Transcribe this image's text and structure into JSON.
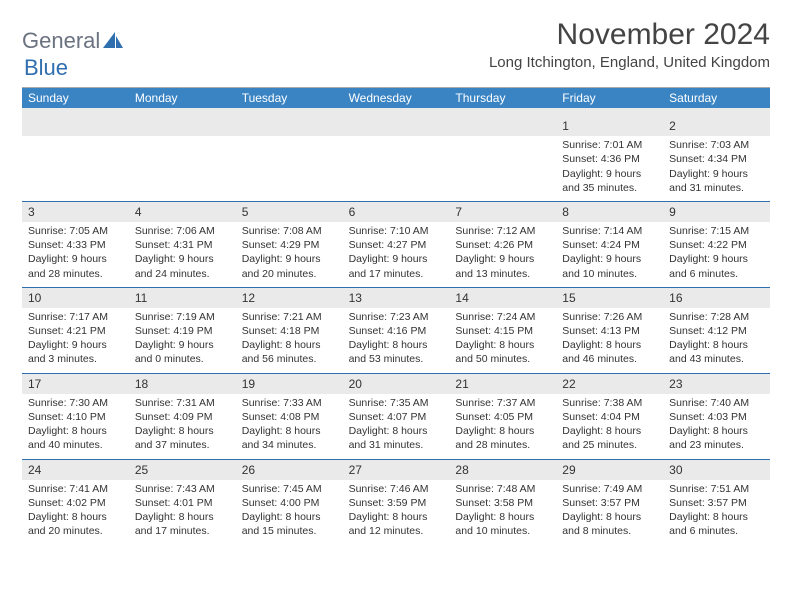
{
  "logo": {
    "text1": "General",
    "text2": "Blue"
  },
  "title": "November 2024",
  "location": "Long Itchington, England, United Kingdom",
  "colors": {
    "header_bg": "#3a84c4",
    "header_fg": "#ffffff",
    "accent": "#2f6fb0",
    "daynum_bg": "#eaeaea",
    "text": "#333333",
    "logo_gray": "#6b7280"
  },
  "day_headers": [
    "Sunday",
    "Monday",
    "Tuesday",
    "Wednesday",
    "Thursday",
    "Friday",
    "Saturday"
  ],
  "weeks": [
    [
      {
        "num": "",
        "sunrise": "",
        "sunset": "",
        "dl1": "",
        "dl2": ""
      },
      {
        "num": "",
        "sunrise": "",
        "sunset": "",
        "dl1": "",
        "dl2": ""
      },
      {
        "num": "",
        "sunrise": "",
        "sunset": "",
        "dl1": "",
        "dl2": ""
      },
      {
        "num": "",
        "sunrise": "",
        "sunset": "",
        "dl1": "",
        "dl2": ""
      },
      {
        "num": "",
        "sunrise": "",
        "sunset": "",
        "dl1": "",
        "dl2": ""
      },
      {
        "num": "1",
        "sunrise": "Sunrise: 7:01 AM",
        "sunset": "Sunset: 4:36 PM",
        "dl1": "Daylight: 9 hours",
        "dl2": "and 35 minutes."
      },
      {
        "num": "2",
        "sunrise": "Sunrise: 7:03 AM",
        "sunset": "Sunset: 4:34 PM",
        "dl1": "Daylight: 9 hours",
        "dl2": "and 31 minutes."
      }
    ],
    [
      {
        "num": "3",
        "sunrise": "Sunrise: 7:05 AM",
        "sunset": "Sunset: 4:33 PM",
        "dl1": "Daylight: 9 hours",
        "dl2": "and 28 minutes."
      },
      {
        "num": "4",
        "sunrise": "Sunrise: 7:06 AM",
        "sunset": "Sunset: 4:31 PM",
        "dl1": "Daylight: 9 hours",
        "dl2": "and 24 minutes."
      },
      {
        "num": "5",
        "sunrise": "Sunrise: 7:08 AM",
        "sunset": "Sunset: 4:29 PM",
        "dl1": "Daylight: 9 hours",
        "dl2": "and 20 minutes."
      },
      {
        "num": "6",
        "sunrise": "Sunrise: 7:10 AM",
        "sunset": "Sunset: 4:27 PM",
        "dl1": "Daylight: 9 hours",
        "dl2": "and 17 minutes."
      },
      {
        "num": "7",
        "sunrise": "Sunrise: 7:12 AM",
        "sunset": "Sunset: 4:26 PM",
        "dl1": "Daylight: 9 hours",
        "dl2": "and 13 minutes."
      },
      {
        "num": "8",
        "sunrise": "Sunrise: 7:14 AM",
        "sunset": "Sunset: 4:24 PM",
        "dl1": "Daylight: 9 hours",
        "dl2": "and 10 minutes."
      },
      {
        "num": "9",
        "sunrise": "Sunrise: 7:15 AM",
        "sunset": "Sunset: 4:22 PM",
        "dl1": "Daylight: 9 hours",
        "dl2": "and 6 minutes."
      }
    ],
    [
      {
        "num": "10",
        "sunrise": "Sunrise: 7:17 AM",
        "sunset": "Sunset: 4:21 PM",
        "dl1": "Daylight: 9 hours",
        "dl2": "and 3 minutes."
      },
      {
        "num": "11",
        "sunrise": "Sunrise: 7:19 AM",
        "sunset": "Sunset: 4:19 PM",
        "dl1": "Daylight: 9 hours",
        "dl2": "and 0 minutes."
      },
      {
        "num": "12",
        "sunrise": "Sunrise: 7:21 AM",
        "sunset": "Sunset: 4:18 PM",
        "dl1": "Daylight: 8 hours",
        "dl2": "and 56 minutes."
      },
      {
        "num": "13",
        "sunrise": "Sunrise: 7:23 AM",
        "sunset": "Sunset: 4:16 PM",
        "dl1": "Daylight: 8 hours",
        "dl2": "and 53 minutes."
      },
      {
        "num": "14",
        "sunrise": "Sunrise: 7:24 AM",
        "sunset": "Sunset: 4:15 PM",
        "dl1": "Daylight: 8 hours",
        "dl2": "and 50 minutes."
      },
      {
        "num": "15",
        "sunrise": "Sunrise: 7:26 AM",
        "sunset": "Sunset: 4:13 PM",
        "dl1": "Daylight: 8 hours",
        "dl2": "and 46 minutes."
      },
      {
        "num": "16",
        "sunrise": "Sunrise: 7:28 AM",
        "sunset": "Sunset: 4:12 PM",
        "dl1": "Daylight: 8 hours",
        "dl2": "and 43 minutes."
      }
    ],
    [
      {
        "num": "17",
        "sunrise": "Sunrise: 7:30 AM",
        "sunset": "Sunset: 4:10 PM",
        "dl1": "Daylight: 8 hours",
        "dl2": "and 40 minutes."
      },
      {
        "num": "18",
        "sunrise": "Sunrise: 7:31 AM",
        "sunset": "Sunset: 4:09 PM",
        "dl1": "Daylight: 8 hours",
        "dl2": "and 37 minutes."
      },
      {
        "num": "19",
        "sunrise": "Sunrise: 7:33 AM",
        "sunset": "Sunset: 4:08 PM",
        "dl1": "Daylight: 8 hours",
        "dl2": "and 34 minutes."
      },
      {
        "num": "20",
        "sunrise": "Sunrise: 7:35 AM",
        "sunset": "Sunset: 4:07 PM",
        "dl1": "Daylight: 8 hours",
        "dl2": "and 31 minutes."
      },
      {
        "num": "21",
        "sunrise": "Sunrise: 7:37 AM",
        "sunset": "Sunset: 4:05 PM",
        "dl1": "Daylight: 8 hours",
        "dl2": "and 28 minutes."
      },
      {
        "num": "22",
        "sunrise": "Sunrise: 7:38 AM",
        "sunset": "Sunset: 4:04 PM",
        "dl1": "Daylight: 8 hours",
        "dl2": "and 25 minutes."
      },
      {
        "num": "23",
        "sunrise": "Sunrise: 7:40 AM",
        "sunset": "Sunset: 4:03 PM",
        "dl1": "Daylight: 8 hours",
        "dl2": "and 23 minutes."
      }
    ],
    [
      {
        "num": "24",
        "sunrise": "Sunrise: 7:41 AM",
        "sunset": "Sunset: 4:02 PM",
        "dl1": "Daylight: 8 hours",
        "dl2": "and 20 minutes."
      },
      {
        "num": "25",
        "sunrise": "Sunrise: 7:43 AM",
        "sunset": "Sunset: 4:01 PM",
        "dl1": "Daylight: 8 hours",
        "dl2": "and 17 minutes."
      },
      {
        "num": "26",
        "sunrise": "Sunrise: 7:45 AM",
        "sunset": "Sunset: 4:00 PM",
        "dl1": "Daylight: 8 hours",
        "dl2": "and 15 minutes."
      },
      {
        "num": "27",
        "sunrise": "Sunrise: 7:46 AM",
        "sunset": "Sunset: 3:59 PM",
        "dl1": "Daylight: 8 hours",
        "dl2": "and 12 minutes."
      },
      {
        "num": "28",
        "sunrise": "Sunrise: 7:48 AM",
        "sunset": "Sunset: 3:58 PM",
        "dl1": "Daylight: 8 hours",
        "dl2": "and 10 minutes."
      },
      {
        "num": "29",
        "sunrise": "Sunrise: 7:49 AM",
        "sunset": "Sunset: 3:57 PM",
        "dl1": "Daylight: 8 hours",
        "dl2": "and 8 minutes."
      },
      {
        "num": "30",
        "sunrise": "Sunrise: 7:51 AM",
        "sunset": "Sunset: 3:57 PM",
        "dl1": "Daylight: 8 hours",
        "dl2": "and 6 minutes."
      }
    ]
  ]
}
